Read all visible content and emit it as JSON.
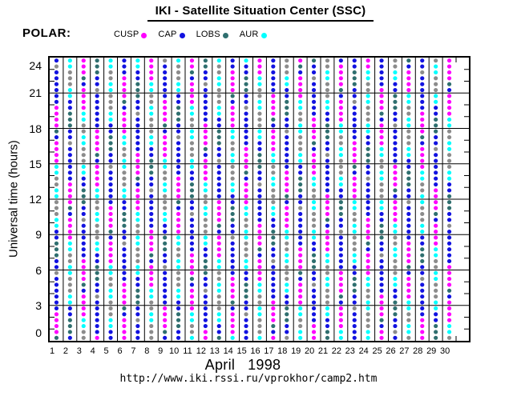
{
  "page": {
    "title": "IKI - Satellite Situation Center (SSC)",
    "spacecraft_label": "POLAR:",
    "month_label": "April   1998",
    "url": "http://www.iki.rssi.ru/vprokhor/camp2.htm"
  },
  "legend": {
    "items": [
      {
        "label": "CUSP",
        "color": "#ff00ff"
      },
      {
        "label": "CAP",
        "color": "#1212e0"
      },
      {
        "label": "LOBS",
        "color": "#2f6f6f"
      },
      {
        "label": "AUR",
        "color": "#00ffff"
      }
    ]
  },
  "chart_data": {
    "type": "scatter",
    "title": "IKI - Satellite Situation Center (SSC)",
    "xlabel": "April   1998",
    "ylabel": "Universal time (hours)",
    "x_categories": [
      "1",
      "2",
      "3",
      "4",
      "5",
      "6",
      "7",
      "8",
      "9",
      "10",
      "11",
      "12",
      "13",
      "14",
      "15",
      "16",
      "17",
      "18",
      "19",
      "20",
      "21",
      "22",
      "23",
      "24",
      "25",
      "26",
      "27",
      "28",
      "29",
      "30"
    ],
    "ylim": [
      0,
      24
    ],
    "y_major_ticks": [
      "0",
      "3",
      "6",
      "9",
      "12",
      "15",
      "18",
      "21",
      "24"
    ],
    "y_minor_step_hours": 1,
    "slot_hours": 0.5,
    "grid": true,
    "legend_position": "top",
    "colors": {
      "U": "#ff00ff",
      "P": "#1212e0",
      "L": "#2f6f6f",
      "A": "#00ffff",
      "G": "#8c8c8c"
    },
    "series_names": {
      "U": "CUSP",
      "P": "CAP",
      "L": "LOBS",
      "A": "AUR"
    },
    "days": [
      "LUUUUPPPPPPGPPLLLPPAAGGGAAGGAAUUUUPLUUUUPPPPPPGP",
      "PLLLPPAAGGGAAGGAAUUUUPLUUUUPPPPPPGPPLLLPPAAGGGAA",
      "GGAAUUUUPLUUUUPPPPPPGPPLLLPPAAGGGAAGGAAUUUUPLUUU",
      "UPPPPPPGPPLLLPPAAGGGAAGGAAUUUUPLUUUUPPPPPPGPPLLL",
      "PPAAGGGAAGGAAUUUUPLUUUUPPPPPPGPPLLLPPAAGGGAAGGAA",
      "UUUUPLUUUUPPPPPPGPPLLLPPAAGGGAAGGAAUUUUPLUUUUPPP",
      "PPPGPPLLLPPAAGGGAAGGAAUUUUPLUUUUPPPPPPGPPLLLPPAA",
      "GGGAAGGAAUUUUPLUUUUPPPPPPGPPLLLPPAAGGGAAGGAAUUUU",
      "PLUUUUPPPPPPGPPLLLPPAAGGGAAGGAAUUUUPLUUUUPPPPPPG",
      "PPLLLPPAAGGGAAGGAAUUUUPLUUUUPPPPPPGPPLLLPPAAGGGA",
      "AGGAAUUUUPLUUUUPPPPPPGPPLLLPPAAGGGAAGGAAUUUUPLUU",
      "UUPPPPPPGPPLLLPPAAGGGAAGGAAUUUUPLUUUUPPPPPPGPPLL",
      "LPPAAGGGAAGGAAUUUUPLUUUUPPPPPPGPPLLLPPAAGGGAAGGA",
      "AUUUUPLUUUUPPPPPPGPPLLLPPAAGGGAAGGAAUUUUPLUUUUPP",
      "PPPPGPPLLLPPAAGGGAAGGAAUUUUPLUUUUPPPPPPGPPLLLPPA",
      "AGGGAAGGAAUUUUPLUUUUPPPPPPGPPLLLPPAAGGGAAGGAAUUU",
      "UPLUUUUPPPPPPGPPLLLPPAAGGGAAGGAAUUUUPLUUUUPPPPPP",
      "GPPLLLPPAAGGGAAGGAAUUUUPLUUUUPPPPPPGPPLLLPPAAGGG",
      "AAGGAAUUUUPLUUUUPPPPPPGPPLLLPPAAGGGAAGGAAUUUUPLU",
      "UUUPPPPPPGPPLLLPPAAGGGAAGGAAUUUUPLUUUUPPPPPPGPPL",
      "LLPPAAGGGAAGGAAUUUUPLUUUUPPPPPPGPPLLLPPAAGGGAAGG",
      "AAUUUUPLUUUUPPPPPPGPPLLLPPAAGGGAAGGAAUUUUPLUUUUP",
      "PPPPPGPPLLLPPAAGGGAAGGAAUUUUPLUUUUPPPPPPGPPLLLPP",
      "AAGGGAAGGAAUUUUPLUUUUPPPPPPGPPLLLPPAAGGGAAGGAAUU",
      "UUPLUUUUPPPPPPGPPLLLPPAAGGGAAGGAAUUUUPLUUUUPPPPP",
      "PGPPLLLPPAAGGGAAGGAAUUUUPLUUUUPPPPPPGPPLLLPPAAGG",
      "GAAGGAAUUUUPLUUUUPPPPPPGPPLLLPPAAGGGAAGGAAUUUUPL",
      "UUUUPPPPPPGPPLLLPPAAGGGAAGGAAUUUUPLUUUUPPPPPPGPP",
      "LLLPPAAGGGAAGGAAUUUUPLUUUUPPPPPPGPPLLLPPAAGGGAAG",
      "GAAUUUUPLUUUUPPPPPPGPPLLLPPAAGGGAAGGAAUUUUPLUUUU"
    ]
  }
}
